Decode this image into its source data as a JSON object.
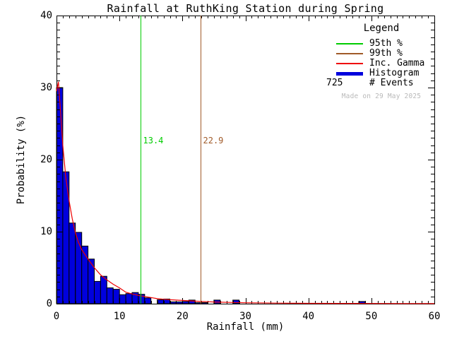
{
  "title": "Rainfall at RuthKing Station during Spring",
  "x_axis": {
    "label": "Rainfall (mm)",
    "ticks": [
      0,
      10,
      20,
      30,
      40,
      50,
      60
    ]
  },
  "y_axis": {
    "label": "Probability (%)",
    "ticks": [
      0,
      10,
      20,
      30,
      40
    ]
  },
  "legend": {
    "title": "Legend",
    "items": [
      {
        "label": "95th %",
        "color": "#00cc00",
        "swatch": "thin"
      },
      {
        "label": "99th %",
        "color": "#a05a28",
        "swatch": "thin"
      },
      {
        "label": "Inc. Gamma",
        "color": "#ee0000",
        "swatch": "thin"
      },
      {
        "label": "Histogram",
        "color": "#0000dd",
        "swatch": "thick"
      }
    ],
    "events_value": "725",
    "events_label": "# Events",
    "watermark": "Made on 29 May 2025"
  },
  "chart_data": {
    "type": "bar",
    "title": "Rainfall at RuthKing Station during Spring",
    "xlabel": "Rainfall (mm)",
    "ylabel": "Probability (%)",
    "xlim": [
      0,
      60
    ],
    "ylim": [
      0,
      40
    ],
    "x_major_ticks": [
      0,
      10,
      20,
      30,
      40,
      50,
      60
    ],
    "y_major_ticks": [
      0,
      10,
      20,
      30,
      40
    ],
    "x_minor_step": 1,
    "y_minor_step": 1,
    "grid": false,
    "legend_position": "top-right-inside",
    "n_events": 725,
    "bin_width_mm": 1,
    "histogram_percent": [
      30.0,
      18.3,
      11.2,
      9.9,
      8.0,
      6.2,
      3.1,
      3.8,
      2.2,
      2.0,
      1.25,
      1.4,
      1.55,
      1.3,
      0.8,
      0.0,
      0.55,
      0.65,
      0.25,
      0.25,
      0.3,
      0.5,
      0.15,
      0.15,
      0.0,
      0.5,
      0.0,
      0.0,
      0.5,
      0.0,
      0.0,
      0.0,
      0.0,
      0.0,
      0.0,
      0.0,
      0.0,
      0.0,
      0.0,
      0.0,
      0.0,
      0.0,
      0.0,
      0.0,
      0.0,
      0.0,
      0.0,
      0.0,
      0.3,
      0.0,
      0.0,
      0.0,
      0.0,
      0.0,
      0.0,
      0.0,
      0.0,
      0.0,
      0.0,
      0.0
    ],
    "gamma_fit": {
      "x": [
        0,
        0.3,
        0.7,
        1,
        1.5,
        2,
        2.5,
        3,
        3.5,
        4,
        5,
        6,
        7,
        8,
        9,
        10,
        11,
        12,
        13,
        14,
        15,
        16,
        17,
        18,
        19,
        20,
        21,
        22,
        23,
        24,
        25,
        26,
        28,
        30,
        35,
        40,
        45,
        50,
        55,
        60
      ],
      "y": [
        29.5,
        30.8,
        26.0,
        22.0,
        17.3,
        14.3,
        11.8,
        9.8,
        8.5,
        7.5,
        6.2,
        5.0,
        4.0,
        3.3,
        2.7,
        2.2,
        1.6,
        1.35,
        1.15,
        1.0,
        0.85,
        0.7,
        0.62,
        0.55,
        0.5,
        0.45,
        0.4,
        0.35,
        0.3,
        0.27,
        0.24,
        0.21,
        0.17,
        0.13,
        0.08,
        0.05,
        0.04,
        0.03,
        0.02,
        0.02
      ]
    },
    "percentile_lines": [
      {
        "name": "95th",
        "value": 13.4,
        "label": "13.4",
        "color": "#00cc00"
      },
      {
        "name": "99th",
        "value": 22.9,
        "label": "22.9",
        "color": "#a05a28"
      }
    ],
    "colors": {
      "histogram_fill": "#0000dd",
      "histogram_outline": "#000000",
      "gamma_curve": "#ee0000",
      "axis": "#000000",
      "background": "#ffffff",
      "watermark": "#b9b9b9"
    }
  }
}
